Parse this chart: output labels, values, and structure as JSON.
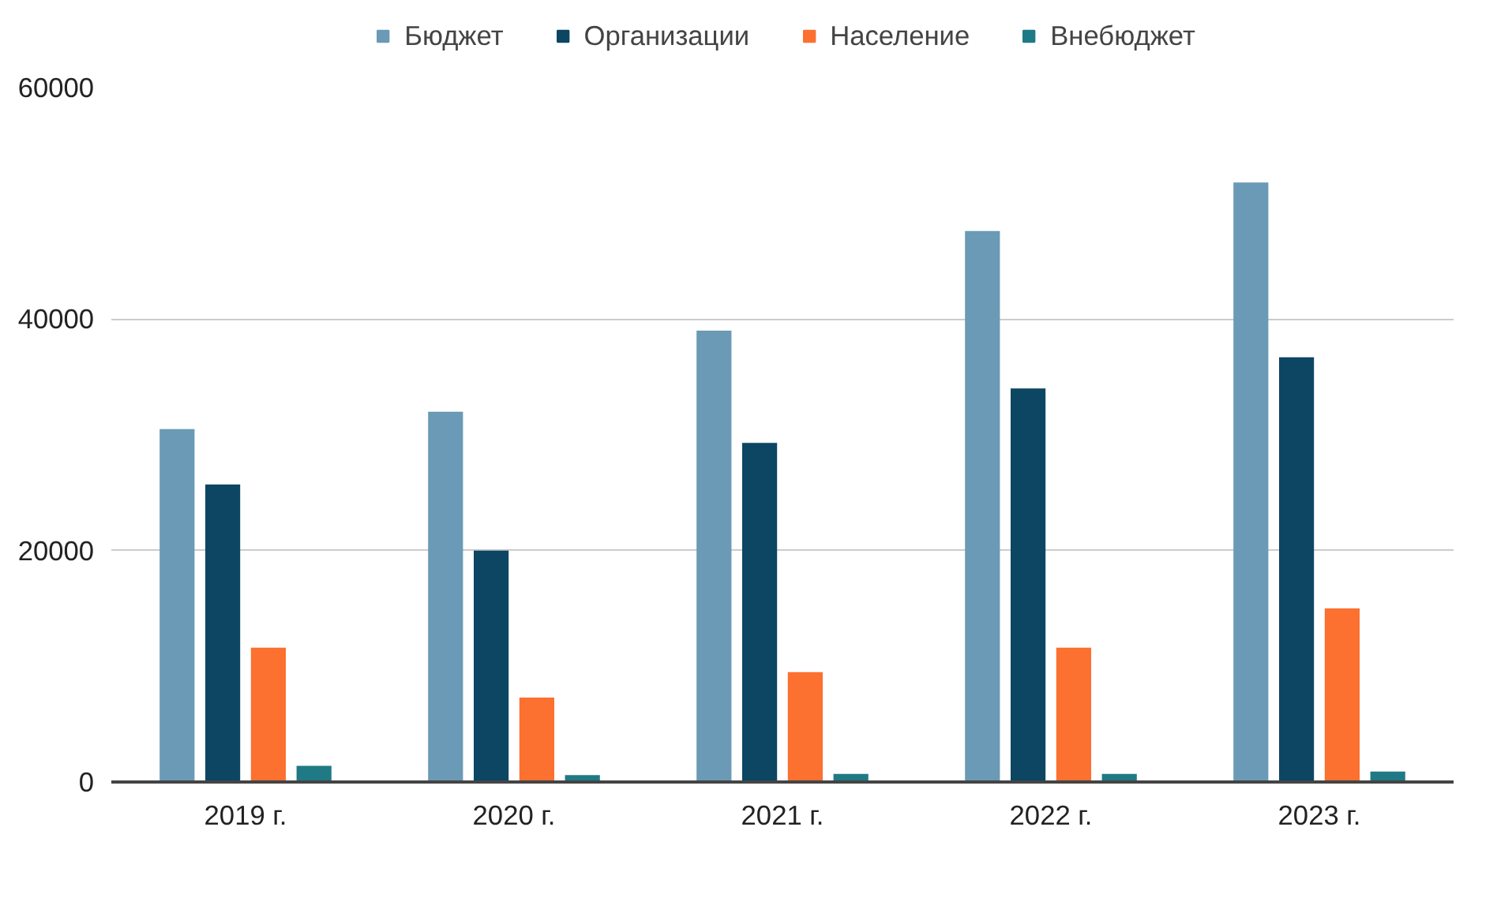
{
  "chart_data": {
    "type": "bar",
    "categories": [
      "2019 г.",
      "2020 г.",
      "2021 г.",
      "2022 г.",
      "2023 г."
    ],
    "series": [
      {
        "name": "Бюджет",
        "color": "#6a9ab5",
        "values": [
          30500,
          32000,
          39000,
          47600,
          51800
        ]
      },
      {
        "name": "Организации",
        "color": "#0c4663",
        "values": [
          25700,
          20000,
          29300,
          34000,
          36700
        ]
      },
      {
        "name": "Население",
        "color": "#fc7030",
        "values": [
          11600,
          7300,
          9500,
          11600,
          15000
        ]
      },
      {
        "name": "Внебюджет",
        "color": "#1f7a85",
        "values": [
          1400,
          600,
          700,
          700,
          900
        ]
      }
    ],
    "ylim": [
      0,
      60000
    ],
    "yticks": [
      0,
      20000,
      40000,
      60000
    ],
    "grid": "y",
    "legend": "top"
  }
}
